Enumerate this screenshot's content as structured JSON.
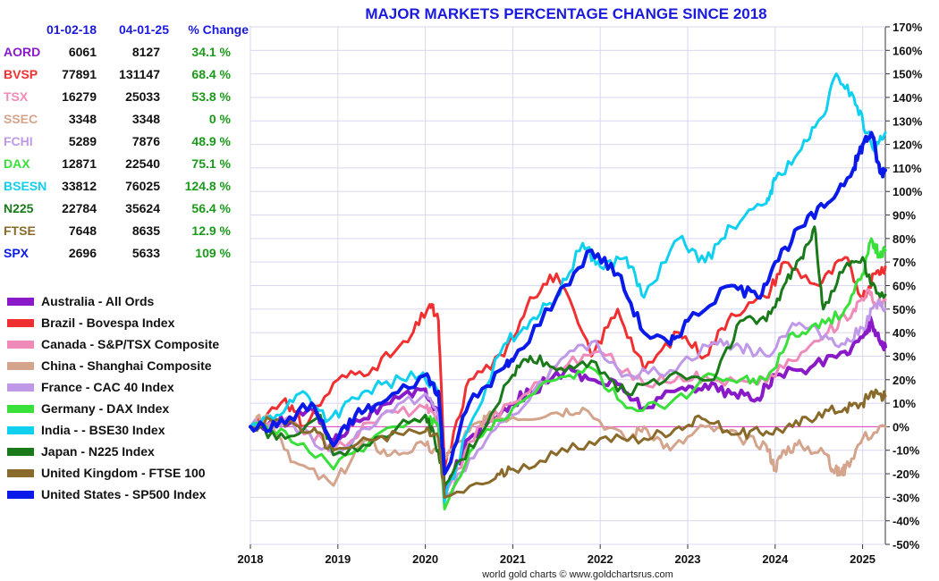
{
  "chart_data": {
    "type": "line",
    "title": "MAJOR MARKETS PERCENTAGE CHANGE SINCE 2018",
    "xlabel": "",
    "ylabel": "",
    "ylim": [
      -50,
      170
    ],
    "xlim": [
      2018.0,
      2025.26
    ],
    "x_ticks": [
      "2018",
      "2019",
      "2020",
      "2021",
      "2022",
      "2023",
      "2024",
      "2025"
    ],
    "y_ticks": [
      -50,
      -40,
      -30,
      -20,
      -10,
      0,
      10,
      20,
      30,
      40,
      50,
      60,
      70,
      80,
      90,
      100,
      110,
      120,
      130,
      140,
      150,
      160,
      170
    ],
    "y_tick_labels": [
      "-50%",
      "-40%",
      "-30%",
      "-20%",
      "-10%",
      "0%",
      "10%",
      "20%",
      "30%",
      "40%",
      "50%",
      "60%",
      "70%",
      "80%",
      "90%",
      "100%",
      "110%",
      "120%",
      "130%",
      "140%",
      "150%",
      "160%",
      "170%"
    ],
    "table": {
      "headers": [
        "01-02-18",
        "04-01-25",
        "% Change"
      ],
      "rows": [
        {
          "code": "AORD",
          "start": "6061",
          "end": "8127",
          "change": "34.1 %"
        },
        {
          "code": "BVSP",
          "start": "77891",
          "end": "131147",
          "change": "68.4 %"
        },
        {
          "code": "TSX",
          "start": "16279",
          "end": "25033",
          "change": "53.8 %"
        },
        {
          "code": "SSEC",
          "start": "3348",
          "end": "3348",
          "change": "0 %"
        },
        {
          "code": "FCHI",
          "start": "5289",
          "end": "7876",
          "change": "48.9 %"
        },
        {
          "code": "DAX",
          "start": "12871",
          "end": "22540",
          "change": "75.1 %"
        },
        {
          "code": "BSESN",
          "start": "33812",
          "end": "76025",
          "change": "124.8 %"
        },
        {
          "code": "N225",
          "start": "22784",
          "end": "35624",
          "change": "56.4 %"
        },
        {
          "code": "FTSE",
          "start": "7648",
          "end": "8635",
          "change": "12.9 %"
        },
        {
          "code": "SPX",
          "start": "2696",
          "end": "5633",
          "change": "109 %"
        }
      ]
    },
    "series": [
      {
        "name": "Australia - All Ords",
        "code": "AORD",
        "color": "#8a1ac8",
        "width": 4,
        "x": [
          2018.0,
          2018.3,
          2018.7,
          2018.95,
          2019.2,
          2019.6,
          2020.0,
          2020.15,
          2020.22,
          2020.5,
          2020.9,
          2021.2,
          2021.6,
          2021.9,
          2022.2,
          2022.5,
          2022.9,
          2023.2,
          2023.5,
          2023.8,
          2024.0,
          2024.4,
          2024.8,
          2025.0,
          2025.1,
          2025.2,
          2025.26
        ],
        "values": [
          0,
          1,
          8,
          -6,
          3,
          10,
          16,
          5,
          -28,
          -5,
          8,
          15,
          24,
          20,
          18,
          8,
          16,
          18,
          14,
          12,
          22,
          25,
          32,
          38,
          45,
          36,
          34
        ]
      },
      {
        "name": "Brazil - Bovespa Index",
        "code": "BVSP",
        "color": "#f03030",
        "width": 3,
        "x": [
          2018.0,
          2018.4,
          2018.6,
          2019.0,
          2019.4,
          2019.8,
          2020.05,
          2020.15,
          2020.22,
          2020.5,
          2020.9,
          2021.2,
          2021.5,
          2021.9,
          2022.2,
          2022.5,
          2022.9,
          2023.2,
          2023.5,
          2023.9,
          2024.1,
          2024.5,
          2024.8,
          2025.0,
          2025.15,
          2025.26
        ],
        "values": [
          0,
          12,
          0,
          20,
          25,
          36,
          52,
          45,
          -18,
          20,
          30,
          55,
          65,
          30,
          50,
          24,
          40,
          30,
          48,
          55,
          70,
          60,
          72,
          55,
          65,
          68
        ]
      },
      {
        "name": "Canada - S&P/TSX Composite",
        "code": "TSX",
        "color": "#f08ab8",
        "width": 3,
        "x": [
          2018.0,
          2018.5,
          2018.95,
          2019.5,
          2020.0,
          2020.15,
          2020.22,
          2020.6,
          2021.0,
          2021.5,
          2022.0,
          2022.5,
          2022.9,
          2023.3,
          2023.8,
          2024.2,
          2024.6,
          2024.9,
          2025.05,
          2025.15,
          2025.26
        ],
        "values": [
          0,
          2,
          -10,
          5,
          8,
          2,
          -30,
          0,
          10,
          25,
          32,
          18,
          22,
          20,
          18,
          28,
          40,
          50,
          58,
          52,
          54
        ]
      },
      {
        "name": "China - Shanghai Composite",
        "code": "SSEC",
        "color": "#d4a48c",
        "width": 3,
        "x": [
          2018.0,
          2018.2,
          2018.5,
          2018.95,
          2019.3,
          2019.6,
          2020.0,
          2020.2,
          2020.5,
          2020.7,
          2021.0,
          2021.5,
          2021.8,
          2022.3,
          2022.5,
          2022.8,
          2023.2,
          2023.6,
          2023.9,
          2024.0,
          2024.1,
          2024.3,
          2024.6,
          2024.65,
          2024.75,
          2024.8,
          2025.0,
          2025.26
        ],
        "values": [
          0,
          5,
          -15,
          -25,
          -6,
          -12,
          -8,
          -14,
          -2,
          4,
          4,
          6,
          8,
          -6,
          0,
          -10,
          0,
          -5,
          -8,
          -18,
          -10,
          -8,
          -12,
          -18,
          -20,
          -18,
          -5,
          0
        ]
      },
      {
        "name": "France - CAC 40 Index",
        "code": "FCHI",
        "color": "#c098e8",
        "width": 3,
        "x": [
          2018.0,
          2018.4,
          2018.95,
          2019.5,
          2020.0,
          2020.15,
          2020.22,
          2020.6,
          2021.0,
          2021.5,
          2021.9,
          2022.3,
          2022.8,
          2023.3,
          2023.6,
          2023.9,
          2024.2,
          2024.5,
          2024.8,
          2025.0,
          2025.15,
          2025.26
        ],
        "values": [
          0,
          3,
          -12,
          5,
          14,
          5,
          -30,
          -10,
          5,
          26,
          36,
          22,
          24,
          36,
          34,
          30,
          44,
          40,
          35,
          42,
          52,
          50
        ]
      },
      {
        "name": "Germany - DAX Index",
        "code": "DAX",
        "color": "#3ae03a",
        "width": 3,
        "x": [
          2018.0,
          2018.4,
          2018.95,
          2019.5,
          2020.0,
          2020.15,
          2020.22,
          2020.6,
          2021.0,
          2021.5,
          2021.9,
          2022.3,
          2022.8,
          2023.3,
          2023.6,
          2023.9,
          2024.2,
          2024.5,
          2024.8,
          2025.0,
          2025.1,
          2025.2,
          2025.26
        ],
        "values": [
          0,
          -2,
          -18,
          -2,
          5,
          0,
          -35,
          -5,
          8,
          20,
          25,
          8,
          10,
          22,
          20,
          20,
          40,
          42,
          50,
          65,
          80,
          72,
          75
        ]
      },
      {
        "name": "India -  - BSE30 Index",
        "code": "BSESN",
        "color": "#10d0f0",
        "width": 3,
        "x": [
          2018.0,
          2018.3,
          2018.6,
          2018.9,
          2019.2,
          2019.5,
          2019.95,
          2020.15,
          2020.22,
          2020.5,
          2020.9,
          2021.2,
          2021.5,
          2021.8,
          2022.0,
          2022.3,
          2022.5,
          2022.9,
          2023.2,
          2023.5,
          2023.9,
          2024.0,
          2024.3,
          2024.55,
          2024.7,
          2024.9,
          2025.05,
          2025.15,
          2025.26
        ],
        "values": [
          0,
          5,
          15,
          3,
          12,
          18,
          22,
          15,
          -32,
          0,
          35,
          45,
          55,
          78,
          68,
          72,
          55,
          80,
          70,
          85,
          95,
          105,
          118,
          132,
          150,
          140,
          125,
          118,
          125
        ]
      },
      {
        "name": "Japan - N225 Index",
        "code": "N225",
        "color": "#1a7a1a",
        "width": 3,
        "x": [
          2018.0,
          2018.4,
          2018.8,
          2018.95,
          2019.5,
          2020.0,
          2020.15,
          2020.22,
          2020.6,
          2021.0,
          2021.2,
          2021.5,
          2021.9,
          2022.3,
          2022.8,
          2023.3,
          2023.6,
          2023.9,
          2024.1,
          2024.3,
          2024.45,
          2024.55,
          2024.8,
          2025.0,
          2025.1,
          2025.26
        ],
        "values": [
          0,
          -5,
          5,
          -12,
          -4,
          5,
          -10,
          -25,
          -5,
          22,
          30,
          24,
          28,
          14,
          22,
          20,
          45,
          45,
          60,
          72,
          85,
          50,
          68,
          72,
          60,
          56
        ]
      },
      {
        "name": "United Kingdom - FTSE 100",
        "code": "FTSE",
        "color": "#8a6a2a",
        "width": 3,
        "x": [
          2018.0,
          2018.3,
          2018.7,
          2018.95,
          2019.5,
          2020.0,
          2020.15,
          2020.22,
          2020.8,
          2021.0,
          2021.5,
          2022.0,
          2022.5,
          2022.9,
          2023.2,
          2023.6,
          2023.9,
          2024.2,
          2024.5,
          2024.8,
          2025.0,
          2025.1,
          2025.2,
          2025.26
        ],
        "values": [
          0,
          3,
          -2,
          -10,
          -4,
          -2,
          -5,
          -30,
          -22,
          -18,
          -12,
          -5,
          -5,
          0,
          3,
          -3,
          -2,
          0,
          6,
          8,
          10,
          15,
          14,
          13
        ]
      },
      {
        "name": "United States - SP500 Index",
        "code": "SPX",
        "color": "#0a1ae8",
        "width": 4,
        "x": [
          2018.0,
          2018.3,
          2018.7,
          2018.95,
          2019.2,
          2019.5,
          2020.0,
          2020.15,
          2020.22,
          2020.5,
          2020.9,
          2021.0,
          2021.5,
          2021.9,
          2022.2,
          2022.5,
          2022.8,
          2023.0,
          2023.5,
          2023.8,
          2024.0,
          2024.3,
          2024.6,
          2024.9,
          2025.0,
          2025.1,
          2025.2,
          2025.26
        ],
        "values": [
          0,
          0,
          10,
          -8,
          5,
          10,
          22,
          15,
          -20,
          10,
          25,
          28,
          55,
          75,
          65,
          40,
          35,
          45,
          60,
          55,
          70,
          85,
          95,
          110,
          120,
          125,
          108,
          109
        ]
      }
    ],
    "reference_line": {
      "value": 0,
      "color": "#e040c0"
    },
    "credit": "world gold charts © www.goldchartsrus.com"
  }
}
